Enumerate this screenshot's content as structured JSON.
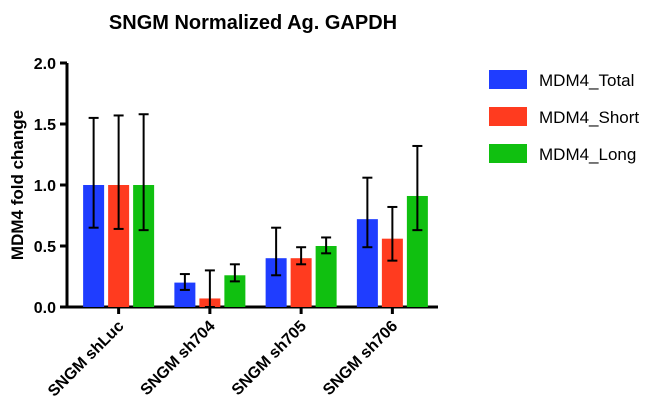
{
  "chart_data": {
    "type": "bar",
    "title": "SNGM Normalized Ag. GAPDH",
    "xlabel": "",
    "ylabel": "MDM4 fold change",
    "ylim": [
      0,
      2.0
    ],
    "yticks": [
      "0.0",
      "0.5",
      "1.0",
      "1.5",
      "2.0"
    ],
    "ytick_values": [
      0,
      0.5,
      1.0,
      1.5,
      2.0
    ],
    "grid": false,
    "legend_position": "top-right",
    "categories": [
      "SNGM shLuc",
      "SNGM sh704",
      "SNGM sh705",
      "SNGM sh706"
    ],
    "series": [
      {
        "name": "MDM4_Total",
        "color": "#1f3dff",
        "values": [
          1.0,
          0.2,
          0.4,
          0.72
        ],
        "error_low": [
          0.65,
          0.14,
          0.26,
          0.49
        ],
        "error_high": [
          1.55,
          0.27,
          0.65,
          1.06
        ]
      },
      {
        "name": "MDM4_Short",
        "color": "#ff3b1f",
        "values": [
          1.0,
          0.07,
          0.4,
          0.56
        ],
        "error_low": [
          0.64,
          0.0,
          0.35,
          0.38
        ],
        "error_high": [
          1.57,
          0.3,
          0.49,
          0.82
        ]
      },
      {
        "name": "MDM4_Long",
        "color": "#10c010",
        "values": [
          1.0,
          0.26,
          0.5,
          0.91
        ],
        "error_low": [
          0.63,
          0.21,
          0.44,
          0.63
        ],
        "error_high": [
          1.58,
          0.35,
          0.57,
          1.32
        ]
      }
    ]
  }
}
